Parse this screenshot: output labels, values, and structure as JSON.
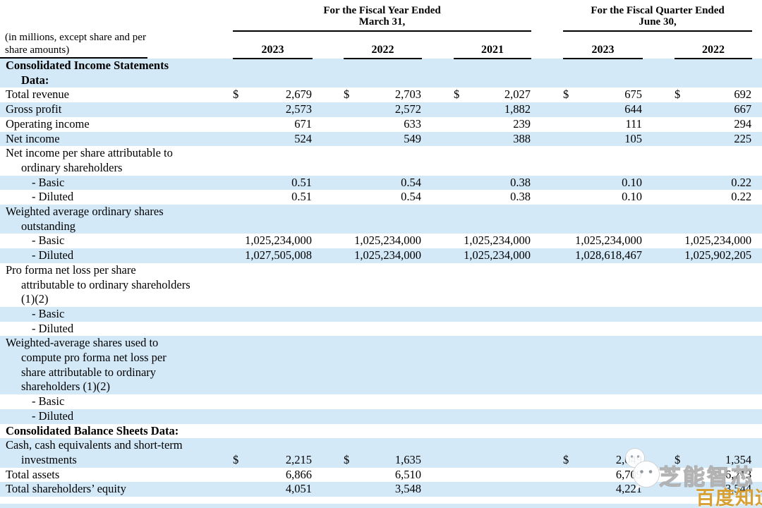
{
  "header": {
    "note_line1": "(in millions, except share and per",
    "note_line2": "share amounts)",
    "fiscal_year_group": {
      "line1": "For the Fiscal Year Ended",
      "line2": "March 31,"
    },
    "fiscal_quarter_group": {
      "line1": "For the Fiscal Quarter Ended",
      "line2": "June 30,"
    },
    "years_flat": [
      "2023",
      "2022",
      "2021",
      "2023",
      "2022"
    ]
  },
  "table": {
    "currency_symbol": "$",
    "rows": [
      {
        "name": "consolidated-income-statements-data",
        "bold": true,
        "shade": true,
        "label_lines": [
          {
            "text": "Consolidated Income Statements",
            "indent": 0
          },
          {
            "text": "Data:",
            "indent": 1
          }
        ]
      },
      {
        "name": "total-revenue",
        "shade": false,
        "label_lines": [
          {
            "text": "Total revenue",
            "indent": 0
          }
        ],
        "dollars": [
          true,
          true,
          true,
          true,
          true
        ],
        "values": [
          "2,679",
          "2,703",
          "2,027",
          "675",
          "692"
        ]
      },
      {
        "name": "gross-profit",
        "shade": true,
        "label_lines": [
          {
            "text": "Gross profit",
            "indent": 0
          }
        ],
        "values": [
          "2,573",
          "2,572",
          "1,882",
          "644",
          "667"
        ]
      },
      {
        "name": "operating-income",
        "shade": false,
        "label_lines": [
          {
            "text": "Operating income",
            "indent": 0
          }
        ],
        "values": [
          "671",
          "633",
          "239",
          "111",
          "294"
        ]
      },
      {
        "name": "net-income",
        "shade": true,
        "label_lines": [
          {
            "text": "Net income",
            "indent": 0
          }
        ],
        "values": [
          "524",
          "549",
          "388",
          "105",
          "225"
        ]
      },
      {
        "name": "net-income-per-share-heading",
        "shade": false,
        "label_lines": [
          {
            "text": "Net income per share attributable to",
            "indent": 0
          },
          {
            "text": "ordinary shareholders",
            "indent": 1
          }
        ]
      },
      {
        "name": "net-income-per-share-basic",
        "shade": true,
        "label_lines": [
          {
            "text": "- Basic",
            "indent": 2
          }
        ],
        "values": [
          "0.51",
          "0.54",
          "0.38",
          "0.10",
          "0.22"
        ]
      },
      {
        "name": "net-income-per-share-diluted",
        "shade": false,
        "label_lines": [
          {
            "text": "- Diluted",
            "indent": 2
          }
        ],
        "values": [
          "0.51",
          "0.54",
          "0.38",
          "0.10",
          "0.22"
        ]
      },
      {
        "name": "weighted-average-shares-heading",
        "shade": true,
        "label_lines": [
          {
            "text": "Weighted average ordinary shares",
            "indent": 0
          },
          {
            "text": "outstanding",
            "indent": 1
          }
        ]
      },
      {
        "name": "weighted-average-shares-basic",
        "shade": false,
        "label_lines": [
          {
            "text": "- Basic",
            "indent": 2
          }
        ],
        "values": [
          "1,025,234,000",
          "1,025,234,000",
          "1,025,234,000",
          "1,025,234,000",
          "1,025,234,000"
        ]
      },
      {
        "name": "weighted-average-shares-diluted",
        "shade": true,
        "label_lines": [
          {
            "text": "- Diluted",
            "indent": 2
          }
        ],
        "values": [
          "1,027,505,008",
          "1,025,234,000",
          "1,025,234,000",
          "1,028,618,467",
          "1,025,902,205"
        ]
      },
      {
        "name": "pro-forma-net-loss-per-share-heading",
        "shade": false,
        "label_lines": [
          {
            "text": "Pro forma net loss per share",
            "indent": 0
          },
          {
            "text": "attributable to ordinary shareholders",
            "indent": 1
          },
          {
            "text": "(1)(2)",
            "indent": 1
          }
        ]
      },
      {
        "name": "pro-forma-net-loss-basic",
        "shade": true,
        "label_lines": [
          {
            "text": "- Basic",
            "indent": 2
          }
        ]
      },
      {
        "name": "pro-forma-net-loss-diluted",
        "shade": false,
        "label_lines": [
          {
            "text": "- Diluted",
            "indent": 2
          }
        ]
      },
      {
        "name": "pro-forma-weighted-average-heading",
        "shade": true,
        "label_lines": [
          {
            "text": "Weighted-average shares used to",
            "indent": 0
          },
          {
            "text": "compute pro forma net loss per",
            "indent": 1
          },
          {
            "text": "share attributable to ordinary",
            "indent": 1
          },
          {
            "text": "shareholders (1)(2)",
            "indent": 1
          }
        ]
      },
      {
        "name": "pro-forma-weighted-average-basic",
        "shade": false,
        "label_lines": [
          {
            "text": "- Basic",
            "indent": 2
          }
        ]
      },
      {
        "name": "pro-forma-weighted-average-diluted",
        "shade": true,
        "label_lines": [
          {
            "text": "- Diluted",
            "indent": 2
          }
        ]
      },
      {
        "name": "consolidated-balance-sheets-data",
        "bold": true,
        "shade": false,
        "label_lines": [
          {
            "text": "Consolidated Balance Sheets Data:",
            "indent": 0
          }
        ]
      },
      {
        "name": "cash-and-short-term-investments",
        "shade": true,
        "label_lines": [
          {
            "text": "Cash, cash equivalents and short-term",
            "indent": 0
          },
          {
            "text": "investments",
            "indent": 1
          }
        ],
        "dollars": [
          true,
          true,
          false,
          true,
          true
        ],
        "values": [
          "2,215",
          "1,635",
          "",
          "2,049",
          "1,354"
        ]
      },
      {
        "name": "total-assets",
        "shade": false,
        "label_lines": [
          {
            "text": "Total assets",
            "indent": 0
          }
        ],
        "values": [
          "6,866",
          "6,510",
          "",
          "6,709",
          "6,213"
        ]
      },
      {
        "name": "total-shareholders-equity",
        "shade": true,
        "label_lines": [
          {
            "text": "Total shareholders’ equity",
            "indent": 0
          }
        ],
        "values": [
          "4,051",
          "3,548",
          "",
          "4,221",
          "3,544"
        ]
      }
    ]
  },
  "watermark": {
    "brand_text": "芝能智芯",
    "badge_text": "百度知道"
  },
  "colors": {
    "row_shade": "#d3e9f8",
    "badge_gold": "#d8a032",
    "rule": "#000000",
    "text": "#000000"
  }
}
